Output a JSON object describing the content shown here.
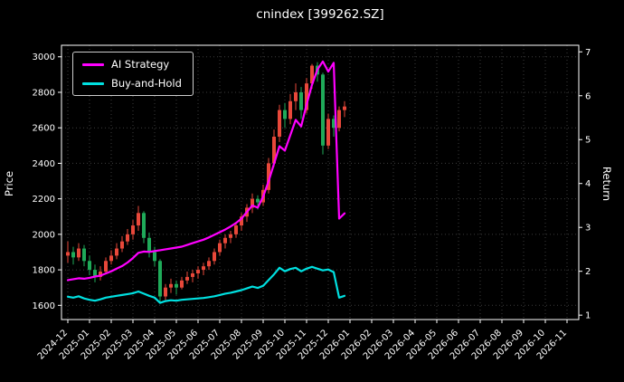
{
  "title": "cnindex [399262.SZ]",
  "legend": {
    "items": [
      {
        "label": "AI Strategy",
        "color": "#ff00ff"
      },
      {
        "label": "Buy-and-Hold",
        "color": "#00e0e0"
      }
    ]
  },
  "axes": {
    "left": {
      "label": "Price"
    },
    "right": {
      "label": "Return"
    }
  },
  "chart_data": {
    "type": "candlestick+line",
    "title": "cnindex [399262.SZ]",
    "grid": true,
    "legend_position": "upper-left",
    "x_ticks": [
      "2024-12",
      "2025-01",
      "2025-02",
      "2025-03",
      "2025-04",
      "2025-05",
      "2025-06",
      "2025-07",
      "2025-08",
      "2025-09",
      "2025-10",
      "2025-11",
      "2025-12",
      "2026-01",
      "2026-02",
      "2026-03",
      "2026-04",
      "2026-05",
      "2026-06",
      "2026-07",
      "2026-08",
      "2026-09",
      "2026-10",
      "2026-11"
    ],
    "left_axis": {
      "label": "Price",
      "ticks": [
        1600,
        1800,
        2000,
        2200,
        2400,
        2600,
        2800,
        3000
      ],
      "range": [
        1520,
        3065
      ]
    },
    "right_axis": {
      "label": "Return",
      "ticks": [
        1,
        2,
        3,
        4,
        5,
        6,
        7
      ],
      "range": [
        0.9,
        7.15
      ]
    },
    "candles": {
      "axis": "left",
      "x_step_months": 0.25,
      "up_color": "#e8483a",
      "down_color": "#1faa59",
      "data": [
        [
          1880,
          1960,
          1840,
          1900
        ],
        [
          1900,
          1930,
          1830,
          1870
        ],
        [
          1870,
          1950,
          1850,
          1920
        ],
        [
          1920,
          1940,
          1820,
          1850
        ],
        [
          1850,
          1880,
          1770,
          1800
        ],
        [
          1800,
          1830,
          1730,
          1760
        ],
        [
          1760,
          1820,
          1740,
          1790
        ],
        [
          1790,
          1870,
          1780,
          1850
        ],
        [
          1850,
          1910,
          1830,
          1880
        ],
        [
          1880,
          1950,
          1860,
          1920
        ],
        [
          1920,
          1990,
          1900,
          1960
        ],
        [
          1960,
          2030,
          1940,
          2000
        ],
        [
          2000,
          2080,
          1970,
          2050
        ],
        [
          2050,
          2160,
          2020,
          2120
        ],
        [
          2120,
          2130,
          1950,
          1980
        ],
        [
          1980,
          2010,
          1870,
          1900
        ],
        [
          1900,
          1930,
          1820,
          1850
        ],
        [
          1850,
          1860,
          1620,
          1650
        ],
        [
          1650,
          1720,
          1630,
          1700
        ],
        [
          1700,
          1750,
          1670,
          1720
        ],
        [
          1720,
          1740,
          1660,
          1700
        ],
        [
          1700,
          1760,
          1690,
          1740
        ],
        [
          1740,
          1790,
          1720,
          1760
        ],
        [
          1760,
          1800,
          1730,
          1780
        ],
        [
          1780,
          1820,
          1750,
          1800
        ],
        [
          1800,
          1840,
          1770,
          1820
        ],
        [
          1820,
          1870,
          1800,
          1850
        ],
        [
          1850,
          1920,
          1830,
          1900
        ],
        [
          1900,
          1970,
          1880,
          1950
        ],
        [
          1950,
          2000,
          1920,
          1980
        ],
        [
          1980,
          2020,
          1950,
          2000
        ],
        [
          2000,
          2070,
          1980,
          2050
        ],
        [
          2050,
          2120,
          2020,
          2100
        ],
        [
          2100,
          2170,
          2070,
          2150
        ],
        [
          2150,
          2230,
          2120,
          2200
        ],
        [
          2200,
          2220,
          2140,
          2180
        ],
        [
          2180,
          2280,
          2160,
          2250
        ],
        [
          2250,
          2430,
          2230,
          2400
        ],
        [
          2400,
          2590,
          2380,
          2550
        ],
        [
          2550,
          2730,
          2520,
          2700
        ],
        [
          2700,
          2740,
          2600,
          2650
        ],
        [
          2650,
          2790,
          2620,
          2750
        ],
        [
          2750,
          2850,
          2700,
          2800
        ],
        [
          2800,
          2830,
          2650,
          2700
        ],
        [
          2700,
          2880,
          2680,
          2850
        ],
        [
          2850,
          2960,
          2820,
          2950
        ],
        [
          2950,
          2970,
          2860,
          2900
        ],
        [
          2900,
          2910,
          2450,
          2500
        ],
        [
          2500,
          2680,
          2480,
          2650
        ],
        [
          2650,
          2670,
          2550,
          2600
        ],
        [
          2600,
          2720,
          2580,
          2700
        ],
        [
          2700,
          2750,
          2660,
          2720
        ]
      ]
    },
    "series": [
      {
        "name": "AI Strategy",
        "axis": "right",
        "color": "#ff00ff",
        "values": [
          1.8,
          1.82,
          1.84,
          1.83,
          1.85,
          1.88,
          1.9,
          1.95,
          2.0,
          2.06,
          2.12,
          2.2,
          2.3,
          2.42,
          2.45,
          2.44,
          2.46,
          2.48,
          2.5,
          2.52,
          2.54,
          2.56,
          2.6,
          2.64,
          2.68,
          2.72,
          2.77,
          2.83,
          2.89,
          2.95,
          3.02,
          3.1,
          3.2,
          3.35,
          3.5,
          3.45,
          3.7,
          4.05,
          4.45,
          4.85,
          4.75,
          5.1,
          5.45,
          5.3,
          5.8,
          6.25,
          6.6,
          6.78,
          6.55,
          6.75,
          3.2,
          3.32
        ]
      },
      {
        "name": "Buy-and-Hold",
        "axis": "right",
        "color": "#00e0e0",
        "values": [
          1.42,
          1.4,
          1.43,
          1.38,
          1.35,
          1.33,
          1.36,
          1.4,
          1.42,
          1.44,
          1.46,
          1.48,
          1.5,
          1.54,
          1.49,
          1.44,
          1.4,
          1.28,
          1.32,
          1.34,
          1.33,
          1.35,
          1.36,
          1.37,
          1.38,
          1.39,
          1.41,
          1.43,
          1.46,
          1.49,
          1.51,
          1.54,
          1.57,
          1.61,
          1.65,
          1.62,
          1.67,
          1.8,
          1.93,
          2.08,
          2.0,
          2.05,
          2.08,
          2.0,
          2.06,
          2.1,
          2.06,
          2.02,
          2.04,
          1.98,
          1.4,
          1.44
        ]
      }
    ]
  }
}
